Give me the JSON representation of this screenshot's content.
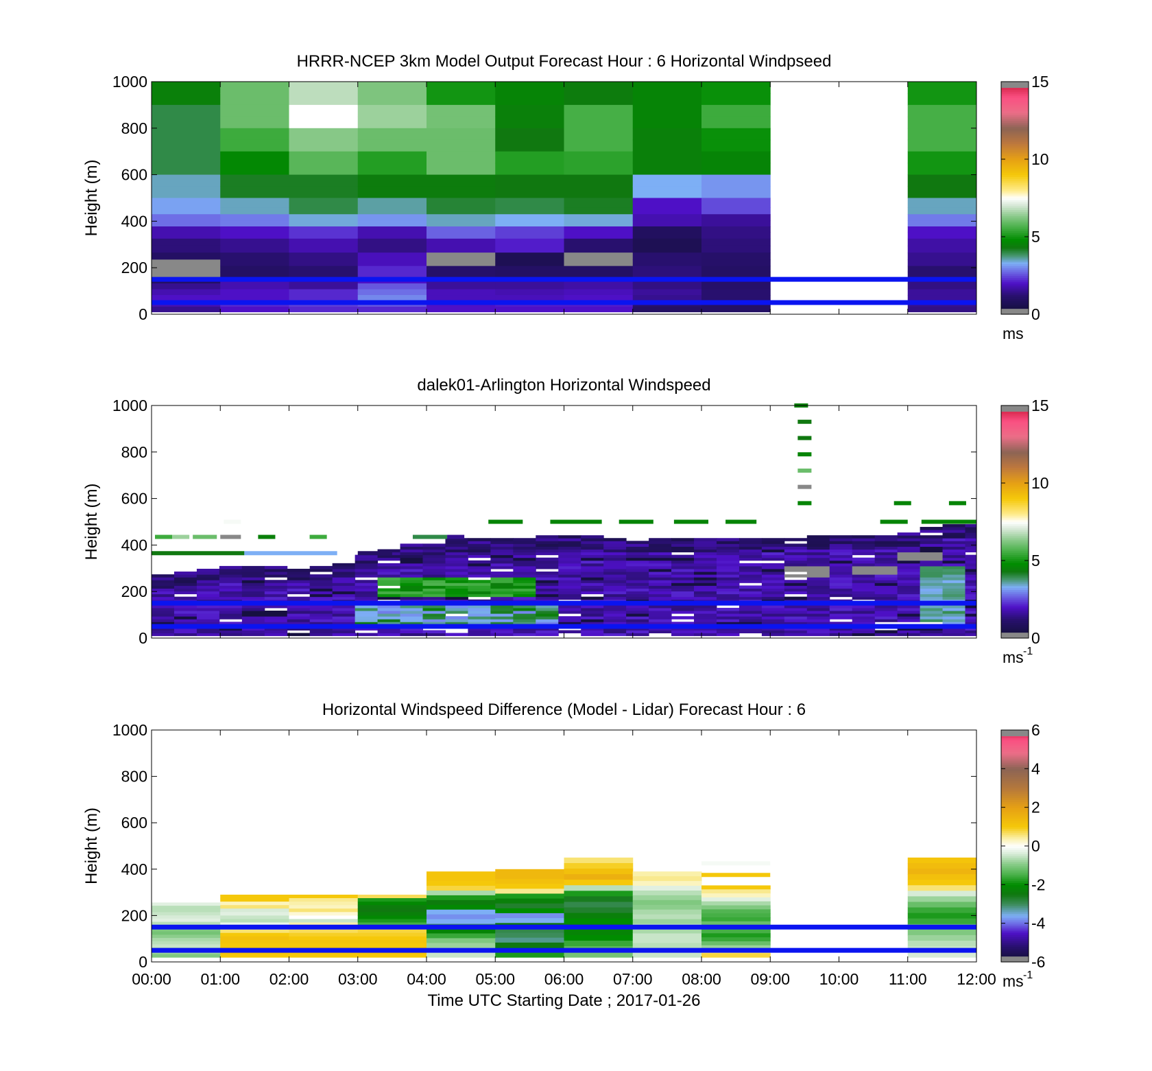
{
  "chart_data": [
    {
      "type": "heatmap",
      "title": "HRRR-NCEP 3km Model Output   Forecast Hour : 6 Horizontal Windpseed",
      "ylabel": "Height (m)",
      "xlabel": "",
      "ylim": [
        0,
        1000
      ],
      "yticks": [
        "0",
        "200",
        "400",
        "600",
        "800",
        "1000"
      ],
      "xlim_hours": [
        0,
        12
      ],
      "colorbar": {
        "ticks": [
          "0",
          "5",
          "10",
          "15"
        ],
        "range": [
          0,
          15
        ],
        "unit": "ms",
        "unit_sup": ""
      },
      "reference_lines_m": [
        150,
        50
      ],
      "heights_m": [
        975,
        925,
        875,
        825,
        775,
        725,
        675,
        625,
        575,
        525,
        475,
        445,
        415,
        390,
        365,
        340,
        310,
        280,
        250,
        220,
        195,
        170,
        145,
        120,
        95,
        70,
        45,
        20
      ],
      "bands": [
        [
          [
            0,
            1000
          ],
          [
            950,
            1000
          ],
          [
            0.25,
            2.5
          ]
        ],
        [
          [
            0,
            1
          ],
          [
            950,
            1000
          ],
          [
            5,
            7
          ]
        ]
      ],
      "columns": [
        {
          "x0": 0,
          "x1": 1,
          "values": [
            4.5,
            4.5,
            4.0,
            4.0,
            4.0,
            4.0,
            4.0,
            4.0,
            3.5,
            3.5,
            3.2,
            3.2,
            2.8,
            2.8,
            1.8,
            1.8,
            1.3,
            1.3,
            1.0,
            -1,
            -1,
            -1,
            1.0,
            1.5,
            1.8,
            2.0,
            1.8,
            1.5
          ]
        },
        {
          "x0": 1,
          "x1": 2,
          "values": [
            6.0,
            6.0,
            6.0,
            6.0,
            5.5,
            5.5,
            4.7,
            4.7,
            4.2,
            4.2,
            3.5,
            3.5,
            2.9,
            2.9,
            2.0,
            2.0,
            1.5,
            1.5,
            1.2,
            1.2,
            1.0,
            1.0,
            1.8,
            1.8,
            2.0,
            2.0,
            2.2,
            2.0
          ]
        },
        {
          "x0": 2,
          "x1": 3,
          "values": [
            6.8,
            6.8,
            7.5,
            7.5,
            6.3,
            6.3,
            5.8,
            5.8,
            4.2,
            4.2,
            4.0,
            4.0,
            3.4,
            3.4,
            2.3,
            2.3,
            1.8,
            1.8,
            1.4,
            1.4,
            1.2,
            1.2,
            1.6,
            1.6,
            2.2,
            2.2,
            2.4,
            2.2
          ]
        },
        {
          "x0": 3,
          "x1": 4,
          "values": [
            6.2,
            6.2,
            6.5,
            6.5,
            6.0,
            6.0,
            5.2,
            5.2,
            4.4,
            4.4,
            3.6,
            3.6,
            3.1,
            3.1,
            1.8,
            1.8,
            1.4,
            1.4,
            1.9,
            1.9,
            2.2,
            2.2,
            2.0,
            2.6,
            2.8,
            3.0,
            2.6,
            2.2
          ]
        },
        {
          "x0": 4,
          "x1": 5,
          "values": [
            5.0,
            5.0,
            6.1,
            6.1,
            6.0,
            6.0,
            6.0,
            6.0,
            4.4,
            4.4,
            4.1,
            4.1,
            3.5,
            3.5,
            2.7,
            2.7,
            1.8,
            1.8,
            -1,
            -1,
            1.1,
            1.1,
            1.6,
            1.6,
            1.9,
            1.9,
            2.0,
            2.0
          ]
        },
        {
          "x0": 5,
          "x1": 6,
          "values": [
            4.6,
            4.6,
            4.5,
            4.5,
            4.3,
            4.3,
            5.2,
            5.2,
            4.3,
            4.3,
            4.0,
            4.0,
            3.3,
            3.3,
            2.4,
            2.4,
            2.1,
            2.1,
            0.7,
            0.7,
            1.0,
            1.0,
            1.6,
            1.6,
            1.8,
            1.9,
            2.1,
            2.0
          ]
        },
        {
          "x0": 6,
          "x1": 7,
          "values": [
            4.4,
            4.4,
            5.6,
            5.6,
            5.6,
            5.6,
            5.3,
            5.3,
            4.3,
            4.3,
            4.2,
            4.2,
            3.4,
            3.4,
            2.0,
            2.0,
            1.2,
            1.2,
            -1,
            -1,
            1.0,
            1.0,
            1.7,
            1.7,
            1.9,
            2.0,
            2.1,
            2.0
          ]
        },
        {
          "x0": 7,
          "x1": 8,
          "values": [
            4.6,
            4.6,
            4.6,
            4.6,
            4.5,
            4.5,
            4.5,
            4.5,
            3.3,
            3.3,
            2.0,
            2.0,
            1.8,
            1.8,
            0.9,
            0.9,
            0.7,
            0.7,
            1.2,
            1.2,
            1.3,
            1.3,
            1.4,
            1.4,
            1.6,
            1.5,
            1.2,
            1.0
          ]
        },
        {
          "x0": 8,
          "x1": 9,
          "values": [
            4.9,
            4.9,
            5.5,
            5.5,
            4.9,
            4.9,
            4.6,
            4.6,
            3.1,
            3.1,
            2.5,
            2.5,
            1.6,
            1.6,
            1.4,
            1.4,
            1.3,
            1.3,
            1.1,
            1.1,
            1.0,
            1.0,
            1.1,
            1.1,
            1.2,
            1.2,
            1.0,
            1.0
          ]
        },
        {
          "x0": 11,
          "x1": 12,
          "values": [
            5.0,
            5.0,
            5.6,
            5.6,
            5.6,
            5.6,
            5.0,
            5.0,
            4.3,
            4.3,
            3.5,
            3.5,
            2.9,
            2.9,
            2.0,
            2.0,
            1.7,
            1.7,
            1.5,
            1.5,
            1.2,
            1.2,
            1.4,
            1.4,
            1.6,
            1.6,
            1.5,
            1.4
          ]
        }
      ]
    },
    {
      "type": "heatmap",
      "title": "dalek01-Arlington  Horizontal Windspeed",
      "ylabel": "Height (m)",
      "xlabel": "",
      "ylim": [
        0,
        1000
      ],
      "yticks": [
        "0",
        "200",
        "400",
        "600",
        "800",
        "1000"
      ],
      "xlim_hours": [
        0,
        12
      ],
      "colorbar": {
        "ticks": [
          "0",
          "5",
          "10",
          "15"
        ],
        "range": [
          0,
          15
        ],
        "unit": "ms",
        "unit_sup": "-1"
      },
      "reference_lines_m": [
        150,
        50
      ],
      "profile_top_m": [
        270,
        285,
        290,
        300,
        310,
        300,
        290,
        300,
        320,
        350,
        380,
        400,
        410,
        420,
        420,
        420,
        430,
        440,
        440,
        440,
        420,
        410,
        420,
        420,
        420,
        420,
        430,
        430,
        430,
        440,
        440,
        440,
        440,
        450,
        470,
        480,
        480
      ],
      "profile_top_note": "per 20-minute column",
      "green_blob": {
        "x_hours": [
          3.3,
          5.6
        ],
        "y_m": [
          170,
          260
        ],
        "value": 5.2
      },
      "light_blue_lower": {
        "x_hours": [
          3.0,
          5.8
        ],
        "y_m": [
          40,
          140
        ],
        "value": 3.6
      },
      "light_blue_right": {
        "x_hours": [
          11.3,
          11.8
        ],
        "y_m": [
          40,
          300
        ],
        "value": 3.7
      },
      "gray_patches": [
        {
          "x_hours": [
            9.3,
            9.7
          ],
          "y_m": [
            260,
            300
          ],
          "value": -1
        },
        {
          "x_hours": [
            10.2,
            10.8
          ],
          "y_m": [
            270,
            300
          ],
          "value": -1
        },
        {
          "x_hours": [
            11.0,
            11.4
          ],
          "y_m": [
            330,
            360
          ],
          "value": -1
        }
      ],
      "sparse_dashes": [
        {
          "x_hours": [
            9.35,
            9.55
          ],
          "y_m": 1000,
          "value": 4.5
        },
        {
          "x_hours": [
            9.4,
            9.6
          ],
          "y_m": 930,
          "value": 4.3
        },
        {
          "x_hours": [
            9.4,
            9.6
          ],
          "y_m": 860,
          "value": 4.3
        },
        {
          "x_hours": [
            9.4,
            9.6
          ],
          "y_m": 790,
          "value": 4.6
        },
        {
          "x_hours": [
            9.4,
            9.6
          ],
          "y_m": 720,
          "value": 6.0
        },
        {
          "x_hours": [
            9.4,
            9.6
          ],
          "y_m": 650,
          "value": -1
        },
        {
          "x_hours": [
            9.4,
            9.6
          ],
          "y_m": 580,
          "value": 4.6
        },
        {
          "x_hours": [
            10.8,
            11.05
          ],
          "y_m": 580,
          "value": 4.6
        },
        {
          "x_hours": [
            11.6,
            11.85
          ],
          "y_m": 580,
          "value": 4.6
        },
        {
          "x_hours": [
            4.9,
            5.4
          ],
          "y_m": 500,
          "value": 4.6
        },
        {
          "x_hours": [
            5.8,
            6.55
          ],
          "y_m": 500,
          "value": 4.6
        },
        {
          "x_hours": [
            6.8,
            7.3
          ],
          "y_m": 500,
          "value": 4.6
        },
        {
          "x_hours": [
            7.6,
            8.1
          ],
          "y_m": 500,
          "value": 4.6
        },
        {
          "x_hours": [
            8.35,
            8.8
          ],
          "y_m": 500,
          "value": 4.6
        },
        {
          "x_hours": [
            10.6,
            11.0
          ],
          "y_m": 500,
          "value": 4.6
        },
        {
          "x_hours": [
            11.2,
            12.0
          ],
          "y_m": 500,
          "value": 4.6
        },
        {
          "x_hours": [
            1.05,
            1.3
          ],
          "y_m": 500,
          "value": 7.4
        },
        {
          "x_hours": [
            0.05,
            0.3
          ],
          "y_m": 435,
          "value": 5.5
        },
        {
          "x_hours": [
            0.3,
            0.55
          ],
          "y_m": 435,
          "value": 6.5
        },
        {
          "x_hours": [
            0.6,
            0.95
          ],
          "y_m": 435,
          "value": 6.0
        },
        {
          "x_hours": [
            1.0,
            1.3
          ],
          "y_m": 435,
          "value": -1
        },
        {
          "x_hours": [
            1.55,
            1.8
          ],
          "y_m": 435,
          "value": 4.5
        },
        {
          "x_hours": [
            2.3,
            2.55
          ],
          "y_m": 435,
          "value": 5.5
        },
        {
          "x_hours": [
            0.0,
            1.35
          ],
          "y_m": 365,
          "value": 4.3
        },
        {
          "x_hours": [
            1.35,
            2.7
          ],
          "y_m": 365,
          "value": 3.3
        },
        {
          "x_hours": [
            3.0,
            3.5
          ],
          "y_m": 365,
          "value": 1.0
        },
        {
          "x_hours": [
            3.8,
            4.3
          ],
          "y_m": 435,
          "value": 4.0
        },
        {
          "x_hours": [
            4.3,
            4.55
          ],
          "y_m": 435,
          "value": 1.5
        }
      ]
    },
    {
      "type": "heatmap",
      "title": "Horizontal Windspeed Difference (Model - Lidar) Forecast Hour : 6",
      "ylabel": "Height (m)",
      "xlabel": "Time UTC  Starting Date ; 2017-01-26",
      "ylim": [
        0,
        1000
      ],
      "yticks": [
        "0",
        "200",
        "400",
        "600",
        "800",
        "1000"
      ],
      "xticks": [
        "00:00",
        "01:00",
        "02:00",
        "03:00",
        "04:00",
        "05:00",
        "06:00",
        "07:00",
        "08:00",
        "09:00",
        "10:00",
        "11:00",
        "12:00"
      ],
      "xlim_hours": [
        0,
        12
      ],
      "colorbar": {
        "ticks": [
          "-6",
          "-4",
          "-2",
          "0",
          "2",
          "4",
          "6"
        ],
        "range": [
          -6,
          6
        ],
        "unit": "ms",
        "unit_sup": "-1"
      },
      "reference_lines_m": [
        150,
        50
      ],
      "columns": [
        {
          "x0": 0,
          "x1": 1,
          "top_m": 270,
          "values": [
            0.0,
            -0.3,
            -0.6,
            -0.6,
            -0.5,
            -0.4,
            -0.3,
            -0.6,
            -0.8,
            -1.0,
            -1.1,
            -0.9,
            -0.7,
            -0.6,
            -0.5,
            -0.7,
            -0.8,
            -1.0
          ]
        },
        {
          "x0": 1,
          "x1": 2,
          "top_m": 290,
          "values": [
            1.0,
            1.0,
            0.3,
            0.6,
            -0.4,
            -0.3,
            -0.5,
            -0.6,
            -0.2,
            0.5,
            0.6,
            1.0,
            1.2,
            1.1,
            1.0,
            1.1,
            1.2,
            1.0
          ]
        },
        {
          "x0": 2,
          "x1": 3,
          "top_m": 290,
          "values": [
            1.0,
            0.5,
            0.4,
            0.3,
            0.6,
            0.2,
            0.0,
            -0.5,
            0.4,
            0.6,
            0.7,
            0.9,
            1.0,
            1.1,
            1.0,
            1.2,
            1.1,
            1.0
          ]
        },
        {
          "x0": 3,
          "x1": 4,
          "top_m": 290,
          "values": [
            0.7,
            -1.8,
            -2.1,
            -2.4,
            -2.5,
            -2.3,
            -2.1,
            -1.8,
            -1.5,
            0.6,
            0.8,
            0.9,
            1.0,
            1.1,
            1.0,
            1.1,
            1.2,
            1.0
          ]
        },
        {
          "x0": 4,
          "x1": 5,
          "top_m": 390,
          "values": [
            1.1,
            1.1,
            1.0,
            0.8,
            -0.7,
            -1.8,
            -2.4,
            -2.1,
            -3.6,
            -3.8,
            -3.6,
            -3.0,
            -2.2,
            -1.6,
            -1.0,
            -0.8,
            -0.6,
            -0.5
          ]
        },
        {
          "x0": 5,
          "x1": 6,
          "top_m": 400,
          "values": [
            1.4,
            1.4,
            1.2,
            1.0,
            0.5,
            -1.8,
            -2.3,
            -2.7,
            -2.0,
            -3.8,
            -3.6,
            -2.5,
            -2.9,
            -3.0,
            -3.2,
            -2.5,
            -2.0,
            -1.8
          ]
        },
        {
          "x0": 6,
          "x1": 7,
          "top_m": 450,
          "values": [
            0.6,
            0.9,
            1.2,
            1.6,
            1.0,
            -0.6,
            -1.8,
            -2.6,
            -2.9,
            -2.7,
            -2.3,
            -2.0,
            -2.4,
            -2.2,
            -2.0,
            -1.6,
            -1.3,
            -1.1
          ]
        },
        {
          "x0": 7,
          "x1": 8,
          "top_m": 390,
          "values": [
            0.4,
            0.5,
            0.3,
            -0.3,
            -0.6,
            -0.8,
            -1.0,
            -0.9,
            -0.7,
            -0.6,
            -0.8,
            -0.6,
            -0.7,
            -0.5,
            -0.5,
            -0.6,
            -0.6,
            -0.5
          ]
        },
        {
          "x0": 8,
          "x1": 9,
          "top_m": 330,
          "values": [
            1.0,
            0.5,
            0.3,
            -0.3,
            -0.7,
            -1.0,
            -1.4,
            -1.5,
            -1.6,
            -1.2,
            -1.0,
            -1.5,
            -1.8,
            -1.6,
            -1.2,
            -0.8,
            0.6,
            0.8
          ]
        },
        {
          "x0": 11,
          "x1": 12,
          "top_m": 450,
          "values": [
            1.1,
            1.3,
            1.5,
            1.2,
            1.0,
            0.6,
            -0.4,
            -0.8,
            -1.2,
            -1.6,
            -1.8,
            -1.6,
            -1.2,
            -1.0,
            -0.8,
            -0.6,
            -0.5,
            -0.4
          ]
        }
      ],
      "extra_dashes": [
        {
          "x_hours": [
            8.0,
            9.0
          ],
          "y_m": 425,
          "value": -0.1
        },
        {
          "x_hours": [
            8.0,
            9.0
          ],
          "y_m": 375,
          "value": 1.0
        }
      ]
    }
  ]
}
